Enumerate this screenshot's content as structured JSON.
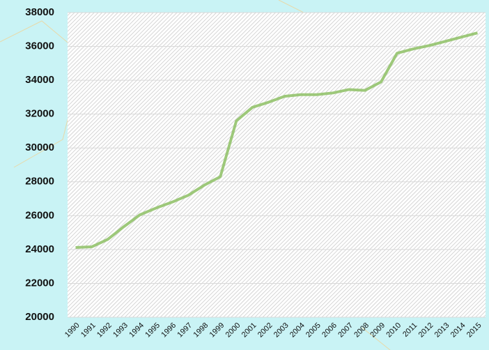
{
  "chart_data": {
    "type": "line",
    "categories": [
      "1990",
      "1991",
      "1992",
      "1993",
      "1994",
      "1995",
      "1996",
      "1997",
      "1998",
      "1999",
      "2000",
      "2001",
      "2002",
      "2003",
      "2004",
      "2005",
      "2006",
      "2007",
      "2008",
      "2009",
      "2010",
      "2011",
      "2012",
      "2013",
      "2014",
      "2015"
    ],
    "series": [
      {
        "color": "#9dc87a",
        "values": [
          24120,
          24160,
          24600,
          25350,
          26050,
          26450,
          26800,
          27200,
          27800,
          28300,
          31600,
          32400,
          32700,
          33050,
          33150,
          33150,
          33250,
          33450,
          33400,
          33900,
          35600,
          35850,
          36050,
          36300,
          36550,
          36800
        ]
      }
    ],
    "ylim": [
      20000,
      38000
    ],
    "yticks": [
      20000,
      22000,
      24000,
      26000,
      28000,
      30000,
      32000,
      34000,
      36000,
      38000
    ],
    "grid": true
  }
}
